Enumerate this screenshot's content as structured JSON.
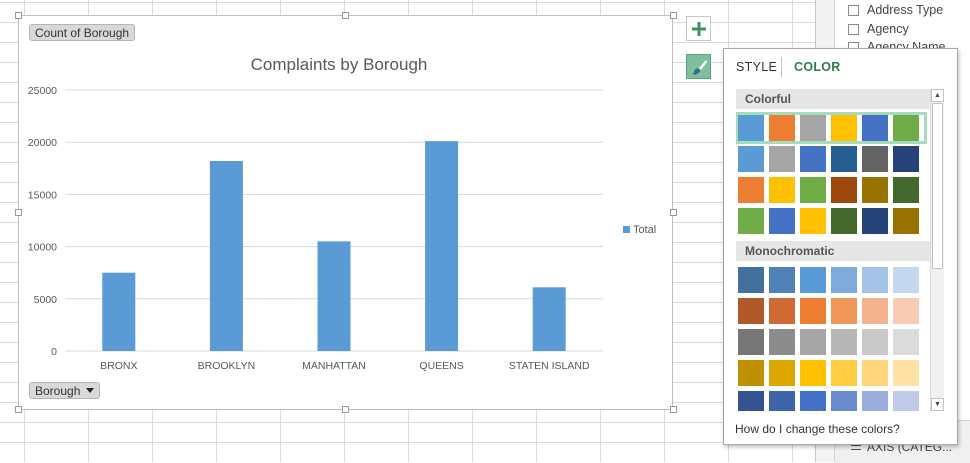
{
  "pivot_buttons": {
    "values_field": "Count of Borough",
    "axis_field": "Borough"
  },
  "chart_data": {
    "type": "bar",
    "title": "Complaints by Borough",
    "categories": [
      "BRONX",
      "BROOKLYN",
      "MANHATTAN",
      "QUEENS",
      "STATEN ISLAND"
    ],
    "series": [
      {
        "name": "Total",
        "values": [
          7500,
          18200,
          10500,
          20100,
          6100
        ],
        "color": "#5b9bd5"
      }
    ],
    "y_ticks": [
      0,
      5000,
      10000,
      15000,
      20000,
      25000
    ],
    "ylim": [
      0,
      25000
    ],
    "grid": true,
    "legend_position": "right"
  },
  "side_buttons": {
    "add_element_icon": "plus-icon",
    "styles_icon": "paintbrush-icon"
  },
  "flyout": {
    "tabs": [
      {
        "label": "STYLE",
        "active": false
      },
      {
        "label": "COLOR",
        "active": true
      }
    ],
    "sections": [
      {
        "title": "Colorful",
        "rows": [
          [
            "#5b9bd5",
            "#ed7d31",
            "#a5a5a5",
            "#ffc000",
            "#4472c4",
            "#70ad47"
          ],
          [
            "#5b9bd5",
            "#a5a5a5",
            "#4472c4",
            "#255e91",
            "#636363",
            "#264478"
          ],
          [
            "#ed7d31",
            "#ffc000",
            "#70ad47",
            "#9e480e",
            "#997300",
            "#43682b"
          ],
          [
            "#70ad47",
            "#4472c4",
            "#ffc000",
            "#43682b",
            "#264478",
            "#997300"
          ]
        ],
        "selected_row": 0
      },
      {
        "title": "Monochromatic",
        "rows": [
          [
            "#44709e",
            "#5082b9",
            "#5b9bd5",
            "#7eabdb",
            "#a5c3e6",
            "#c5d7ef"
          ],
          [
            "#b05a2c",
            "#cf6a34",
            "#ed7d31",
            "#f1975a",
            "#f4b28e",
            "#f8ccb4"
          ],
          [
            "#767676",
            "#8c8c8c",
            "#a5a5a5",
            "#b7b7b7",
            "#c9c9c9",
            "#dbdbdb"
          ],
          [
            "#bf9000",
            "#dca600",
            "#ffc000",
            "#ffcd44",
            "#ffd87e",
            "#ffe3a6"
          ],
          [
            "#345491",
            "#3f63a9",
            "#4472c4",
            "#6a8ccf",
            "#9aaedd",
            "#c0cbe9"
          ]
        ]
      }
    ],
    "help_link": "How do I change these colors?"
  },
  "field_list": {
    "fields": [
      {
        "label": "Address Type",
        "checked": false
      },
      {
        "label": "Agency",
        "checked": false
      },
      {
        "label": "Agency Name",
        "checked": false
      }
    ],
    "area_label": "AXIS (CATEG..."
  }
}
